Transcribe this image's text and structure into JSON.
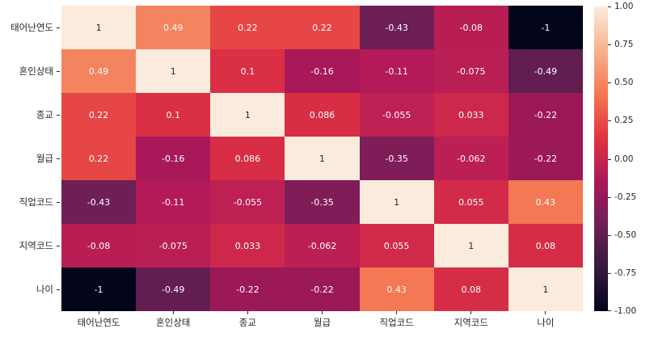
{
  "chart_data": {
    "type": "heatmap",
    "title": "",
    "categories": [
      "태어난연도",
      "혼인상태",
      "종교",
      "월급",
      "직업코드",
      "지역코드",
      "나이"
    ],
    "matrix": [
      [
        "1",
        "0.49",
        "0.22",
        "0.22",
        "-0.43",
        "-0.08",
        "-1"
      ],
      [
        "0.49",
        "1",
        "0.1",
        "-0.16",
        "-0.11",
        "-0.075",
        "-0.49"
      ],
      [
        "0.22",
        "0.1",
        "1",
        "0.086",
        "-0.055",
        "0.033",
        "-0.22"
      ],
      [
        "0.22",
        "-0.16",
        "0.086",
        "1",
        "-0.35",
        "-0.062",
        "-0.22"
      ],
      [
        "-0.43",
        "-0.11",
        "-0.055",
        "-0.35",
        "1",
        "0.055",
        "0.43"
      ],
      [
        "-0.08",
        "-0.075",
        "0.033",
        "-0.062",
        "0.055",
        "1",
        "0.08"
      ],
      [
        "-1",
        "-0.49",
        "-0.22",
        "-0.22",
        "0.43",
        "0.08",
        "1"
      ]
    ],
    "value_range": [
      -1,
      1
    ],
    "legend_position": "right",
    "grid": false,
    "colorbar": {
      "ticks": [
        "1.00",
        "0.75",
        "0.50",
        "0.25",
        "0.00",
        "-0.25",
        "-0.50",
        "-0.75",
        "-1.00"
      ],
      "tick_values": [
        1.0,
        0.75,
        0.5,
        0.25,
        0.0,
        -0.25,
        -0.5,
        -0.75,
        -1.0
      ],
      "min": -1,
      "max": 1
    },
    "colormap": {
      "name": "rocket",
      "stops": [
        [
          0.0,
          "#03051A"
        ],
        [
          0.14,
          "#35193E"
        ],
        [
          0.29,
          "#701F57"
        ],
        [
          0.43,
          "#AD1759"
        ],
        [
          0.57,
          "#E13342"
        ],
        [
          0.71,
          "#F37651"
        ],
        [
          0.86,
          "#F6B48F"
        ],
        [
          1.0,
          "#FAEBDD"
        ]
      ]
    },
    "annotation_colors": {
      "dark_text": "#262626",
      "light_text": "#FFFFFF"
    }
  }
}
